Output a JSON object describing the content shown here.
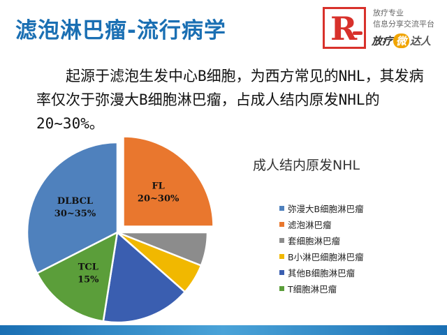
{
  "slide": {
    "title": "滤泡淋巴瘤-流行病学",
    "description": "起源于滤泡生发中心B细胞，为西方常见的NHL，其发病率仅次于弥漫大B细胞淋巴瘤，占成人结内原发NHL的20~30%。"
  },
  "logo": {
    "letter": "R",
    "line1": "放疗专业",
    "line2": "信息分享交流平台",
    "brand_a": "放疗",
    "brand_b": "微",
    "brand_c": "达人"
  },
  "colors": {
    "title": "#1a6fb3",
    "accent_red": "#d8312b",
    "bottom_bar": "#1a6fb3"
  },
  "chart_data": {
    "type": "pie",
    "title": "成人结内原发NHL",
    "legend_position": "right",
    "series": [
      {
        "name": "弥漫大B细胞淋巴瘤",
        "value": 32.5,
        "color": "#4f81bd",
        "label": "DLBCL",
        "label_value": "30~35%",
        "exploded": false
      },
      {
        "name": "滤泡淋巴瘤",
        "value": 25,
        "color": "#e9772e",
        "label": "FL",
        "label_value": "20~30%",
        "exploded": true
      },
      {
        "name": "套细胞淋巴瘤",
        "value": 6,
        "color": "#8c8c8c",
        "label": "",
        "label_value": "",
        "exploded": false
      },
      {
        "name": "B小淋巴细胞淋巴瘤",
        "value": 5.5,
        "color": "#f1b800",
        "label": "",
        "label_value": "",
        "exploded": false
      },
      {
        "name": "其他B细胞淋巴瘤",
        "value": 16,
        "color": "#3a5eb0",
        "label": "",
        "label_value": "",
        "exploded": false
      },
      {
        "name": "T细胞淋巴瘤",
        "value": 15,
        "color": "#5b9e3a",
        "label": "TCL",
        "label_value": "15%",
        "exploded": false
      }
    ]
  }
}
